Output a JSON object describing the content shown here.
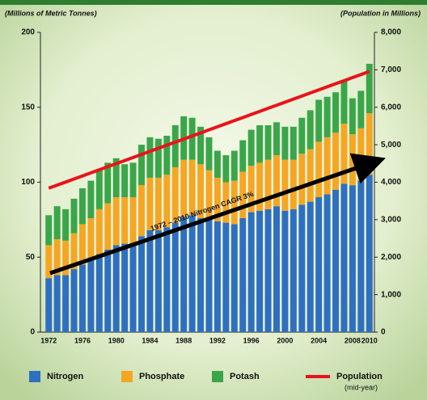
{
  "chart_data": {
    "type": "stacked-bar-line",
    "y_label": "(Millions of Metric Tonnes)",
    "y2_label": "(Population in Millions)",
    "annotation": "1972 – 2010 Nitrogen CAGR 3%",
    "categories": [
      "1972",
      null,
      null,
      null,
      "1976",
      null,
      null,
      null,
      "1980",
      null,
      null,
      null,
      "1984",
      null,
      null,
      null,
      "1988",
      null,
      null,
      null,
      "1992",
      null,
      null,
      null,
      "1996",
      null,
      null,
      null,
      "2000",
      null,
      null,
      null,
      "2004",
      null,
      null,
      null,
      "2008",
      null,
      "2010"
    ],
    "series": [
      {
        "name": "Nitrogen",
        "color": "#2e6fc0",
        "values": [
          36,
          38,
          38,
          42,
          45,
          48,
          52,
          55,
          58,
          59,
          59,
          64,
          68,
          68,
          70,
          73,
          77,
          78,
          76,
          75,
          74,
          73,
          72,
          76,
          80,
          81,
          82,
          84,
          81,
          82,
          85,
          87,
          90,
          92,
          95,
          99,
          98,
          101,
          105
        ]
      },
      {
        "name": "Phosphate",
        "color": "#f5a623",
        "values": [
          22,
          24,
          23,
          24,
          27,
          28,
          30,
          31,
          32,
          31,
          31,
          34,
          35,
          35,
          35,
          37,
          38,
          37,
          36,
          33,
          29,
          27,
          29,
          31,
          31,
          32,
          33,
          34,
          34,
          33,
          34,
          35,
          37,
          38,
          38,
          40,
          34,
          35,
          41
        ]
      },
      {
        "name": "Potash",
        "color": "#3aa64a",
        "values": [
          20,
          22,
          21,
          23,
          24,
          25,
          26,
          27,
          26,
          22,
          23,
          27,
          27,
          26,
          26,
          28,
          29,
          28,
          25,
          22,
          18,
          18,
          20,
          21,
          24,
          25,
          23,
          22,
          22,
          22,
          24,
          26,
          28,
          27,
          27,
          29,
          24,
          25,
          33
        ]
      },
      {
        "name": "Population",
        "color": "#e8141b",
        "axis": "y2",
        "values": [
          3840,
          3922,
          4004,
          4086,
          4168,
          4250,
          4332,
          4414,
          4496,
          4578,
          4660,
          4742,
          4824,
          4906,
          4988,
          5070,
          5152,
          5234,
          5316,
          5398,
          5480,
          5562,
          5644,
          5726,
          5808,
          5890,
          5972,
          6054,
          6136,
          6218,
          6300,
          6382,
          6464,
          6546,
          6628,
          6710,
          6792,
          6874,
          6956
        ]
      }
    ],
    "legend_note": "(mid-year)",
    "legend": "bottom",
    "ylim": [
      0,
      200
    ],
    "yticks": [
      0,
      50,
      100,
      150,
      200
    ],
    "y2lim": [
      0,
      8000
    ],
    "y2ticks": [
      0,
      {
        "value": 1000,
        "label": "1,000"
      },
      {
        "value": 2000,
        "label": "2,000"
      },
      {
        "value": 3000,
        "label": "3,000"
      },
      {
        "value": 4000,
        "label": "4,000"
      },
      {
        "value": 5000,
        "label": "5,000"
      },
      {
        "value": 6000,
        "label": "6,000"
      },
      {
        "value": 7000,
        "label": "7,000"
      },
      {
        "value": 8000,
        "label": "8,000"
      }
    ]
  }
}
